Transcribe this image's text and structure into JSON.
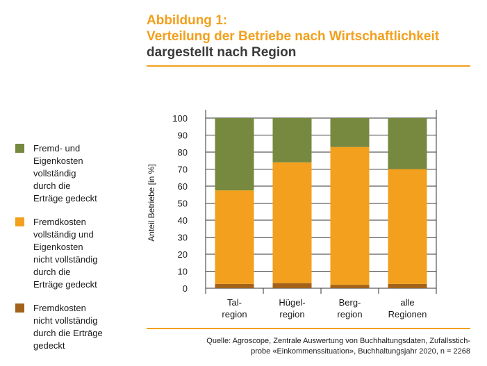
{
  "header": {
    "figure_label": "Abbildung 1:",
    "title": "Verteilung der Betriebe nach Wirtschaftlichkeit",
    "subtitle": "dargestellt nach Region"
  },
  "legend": {
    "items": [
      {
        "color": "#76893f",
        "lines": [
          "Fremd- und",
          "Eigenkosten",
          "vollständig",
          "durch die",
          "Erträge gedeckt"
        ]
      },
      {
        "color": "#f2a01d",
        "lines": [
          "Fremdkosten",
          "vollständig und",
          "Eigenkosten",
          "nicht vollständig",
          "durch die",
          "Erträge gedeckt"
        ]
      },
      {
        "color": "#a3621a",
        "lines": [
          "Fremdkosten",
          "nicht vollständig",
          "durch die Erträge",
          "gedeckt"
        ]
      }
    ]
  },
  "source": {
    "lines": [
      "Quelle: Agroscope, Zentrale Auswertung von Buchhaltungsdaten, Zufallsstich-",
      "probe «Einkommenssituation», Buchhaltungsjahr 2020, n = 2268"
    ]
  },
  "chart_data": {
    "type": "bar",
    "stacked": true,
    "categories": [
      [
        "Tal-",
        "region"
      ],
      [
        "Hügel-",
        "region"
      ],
      [
        "Berg-",
        "region"
      ],
      [
        "alle",
        "Regionen"
      ]
    ],
    "series": [
      {
        "name": "Fremdkosten nicht vollständig durch die Erträge gedeckt",
        "color": "#a3621a",
        "values": [
          2.5,
          3,
          2,
          2.5
        ]
      },
      {
        "name": "Fremdkosten vollständig und Eigenkosten nicht vollständig durch die Erträge gedeckt",
        "color": "#f2a01d",
        "values": [
          55,
          71,
          81,
          67.5
        ]
      },
      {
        "name": "Fremd- und Eigenkosten vollständig durch die Erträge gedeckt",
        "color": "#76893f",
        "values": [
          42.5,
          26,
          17,
          30
        ]
      }
    ],
    "ylabel": "Anteil Betriebe [in %]",
    "ylim": [
      0,
      100
    ],
    "yticks": [
      0,
      10,
      20,
      30,
      40,
      50,
      60,
      70,
      80,
      90,
      100
    ],
    "grid": true
  }
}
